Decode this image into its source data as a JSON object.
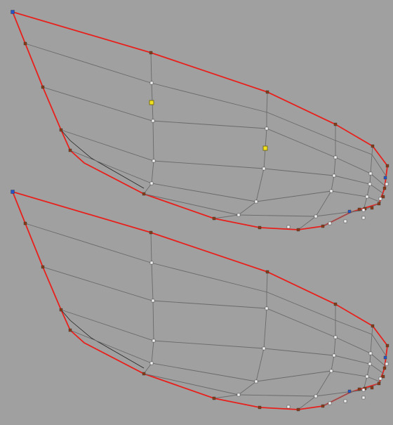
{
  "viewport": {
    "background": "#a0a0a0",
    "colors": {
      "outline": "#e8201c",
      "grid_line": "#6a6a6a",
      "vertex_corner": "#2255cc",
      "vertex_edge": "#8a3a14",
      "vertex_interior": "#f2f2f2",
      "vertex_selected": "#f0e020"
    }
  }
}
